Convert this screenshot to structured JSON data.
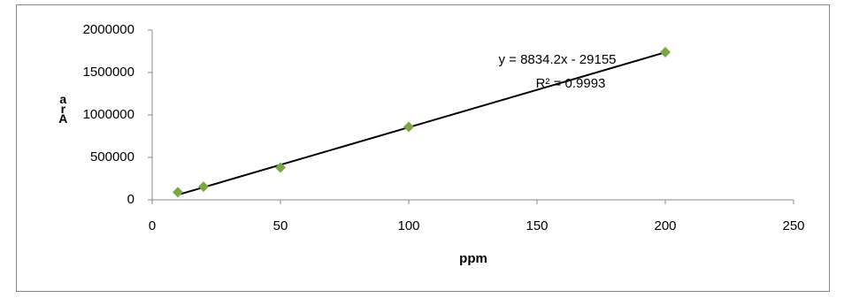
{
  "chart_data": {
    "type": "scatter",
    "x_label": "ppm",
    "y_label": "arA",
    "x": [
      10,
      20,
      50,
      100,
      200
    ],
    "values": [
      90000,
      155000,
      380000,
      860000,
      1740000
    ],
    "color": "#7aa843",
    "trendline": {
      "x": [
        10,
        200
      ],
      "values": [
        59187,
        1737685
      ],
      "color": "#000000"
    },
    "equation": "y = 8834.2x - 29155",
    "r_squared": "R² = 0.9993",
    "xlim": [
      0,
      250
    ],
    "xticks": [
      0,
      50,
      100,
      150,
      200,
      250
    ],
    "ylim": [
      0,
      2000000
    ],
    "yticks": [
      0,
      500000,
      1000000,
      1500000,
      2000000
    ]
  }
}
